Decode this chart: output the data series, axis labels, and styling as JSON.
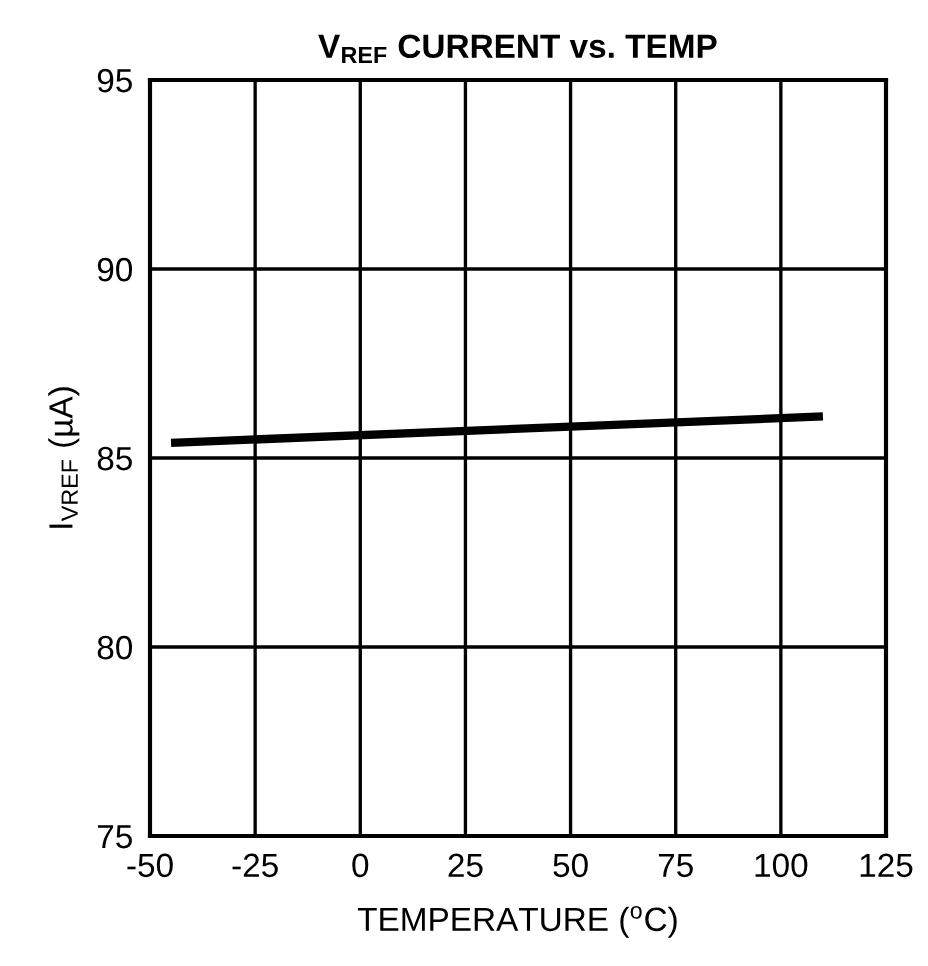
{
  "chart_data": {
    "type": "line",
    "title": "V$_{REF}$ CURRENT vs. TEMP",
    "xlabel": "TEMPERATURE ($^{o}$C)",
    "ylabel": "I$_{VREF}$ (µA)",
    "x": [
      -45,
      110
    ],
    "series": [
      {
        "color": "#000000",
        "values": [
          85.4,
          86.1
        ]
      }
    ],
    "xlim": [
      -50,
      125
    ],
    "xticks": [
      -50,
      -25,
      0,
      25,
      50,
      75,
      100,
      125
    ],
    "ylim": [
      75,
      95
    ],
    "yticks": [
      75,
      80,
      85,
      90,
      95
    ],
    "grid": true,
    "legend": false,
    "line_style": "solid",
    "marker": "none"
  }
}
